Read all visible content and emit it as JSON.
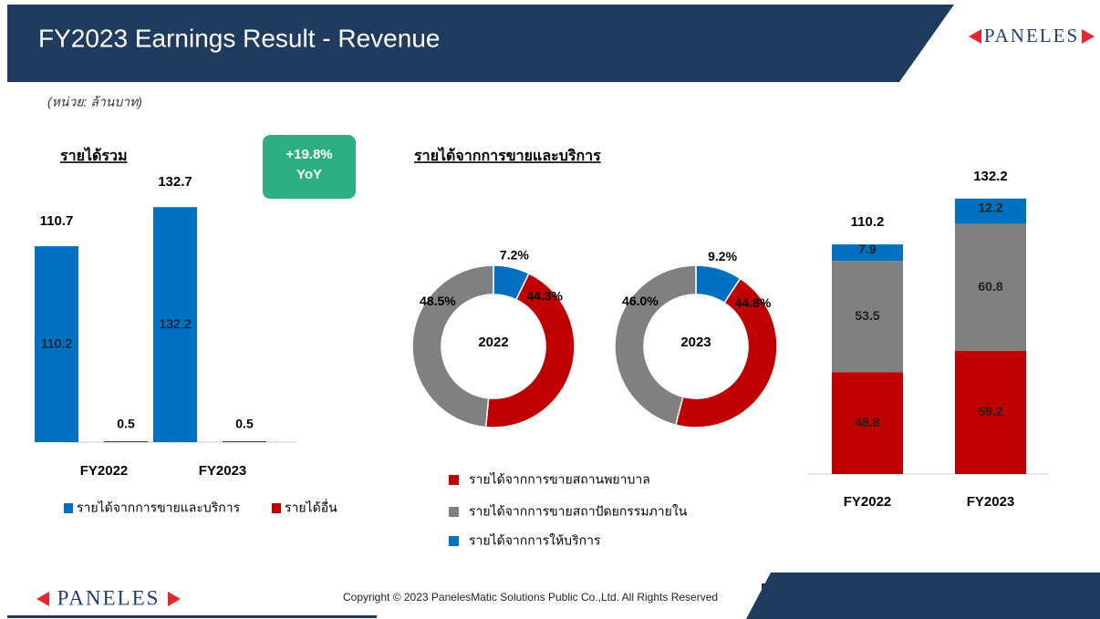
{
  "header": {
    "title": "FY2023 Earnings Result - Revenue",
    "logo": "PANELES",
    "unit": "(หน่วย: ล้านบาท)"
  },
  "footer": {
    "logo": "PANELES",
    "copyright": "Copyright © 2023 PanelesMatic Solutions Public Co.,Ltd. All Rights Reserved"
  },
  "chart_data": [
    {
      "type": "bar",
      "title": "รายได้รวม",
      "annotation": "+19.8%",
      "annotation_sub": "YoY",
      "categories": [
        "FY2022",
        "FY2023"
      ],
      "totals": [
        110.7,
        132.7
      ],
      "series": [
        {
          "name": "รายได้จากการขายและบริการ",
          "color": "#0070c0",
          "values": [
            110.2,
            132.2
          ]
        },
        {
          "name": "รายได้อื่น",
          "color": "#c00000",
          "values": [
            0.5,
            0.5
          ]
        }
      ],
      "ylim": [
        0,
        140
      ]
    },
    {
      "type": "pie",
      "title": "รายได้จากการขายและบริการ",
      "center_label": "2022",
      "categories": [
        "รายได้จากการขายสถานพยาบาล",
        "รายได้จากการขายสถาปัดยกรรมภายใน",
        "รายได้จากการให้บริการ"
      ],
      "colors": [
        "#c00000",
        "#808080",
        "#0070c0"
      ],
      "values": [
        44.3,
        48.5,
        7.2
      ],
      "value_labels": [
        "44.3%",
        "48.5%",
        "7.2%"
      ]
    },
    {
      "type": "pie",
      "center_label": "2023",
      "colors": [
        "#c00000",
        "#808080",
        "#0070c0"
      ],
      "values": [
        44.8,
        46.0,
        9.2
      ],
      "value_labels": [
        "44.8%",
        "46.0%",
        "9.2%"
      ]
    },
    {
      "type": "stacked_bar",
      "categories": [
        "FY2022",
        "FY2023"
      ],
      "totals": [
        110.2,
        132.2
      ],
      "series": [
        {
          "color": "#c00000",
          "values": [
            48.8,
            59.2
          ]
        },
        {
          "color": "#808080",
          "values": [
            53.5,
            60.8
          ]
        },
        {
          "color": "#0070c0",
          "values": [
            7.9,
            12.2
          ]
        }
      ],
      "ylim": [
        0,
        140
      ]
    }
  ]
}
